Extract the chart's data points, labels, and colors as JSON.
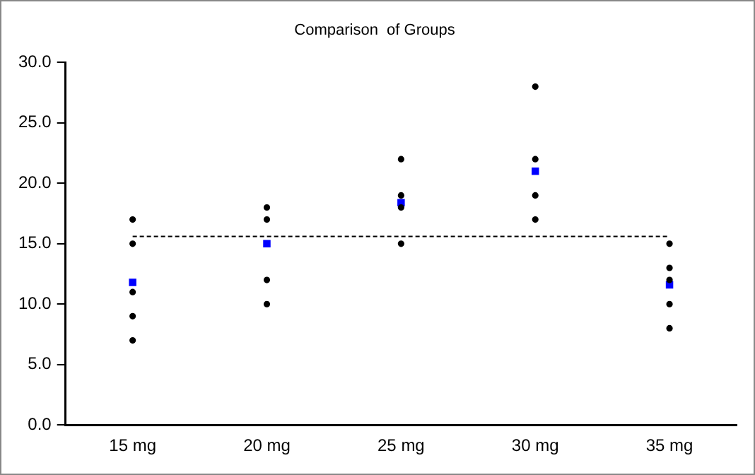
{
  "chart_data": {
    "type": "scatter",
    "title": "Comparison  of Groups",
    "categories": [
      "15 mg",
      "20 mg",
      "25 mg",
      "30 mg",
      "35 mg"
    ],
    "series": [
      {
        "type": "scatter",
        "color": "#000000",
        "marker": "circle",
        "x": [
          "15 mg",
          "15 mg",
          "15 mg",
          "15 mg",
          "15 mg",
          "20 mg",
          "20 mg",
          "20 mg",
          "20 mg",
          "25 mg",
          "25 mg",
          "25 mg",
          "25 mg",
          "30 mg",
          "30 mg",
          "30 mg",
          "30 mg",
          "35 mg",
          "35 mg",
          "35 mg",
          "35 mg",
          "35 mg"
        ],
        "values": [
          17,
          15,
          11,
          9,
          7,
          18,
          17,
          12,
          10,
          22,
          19,
          18,
          15,
          28,
          22,
          19,
          17,
          15,
          13,
          12,
          10,
          8
        ]
      },
      {
        "type": "scatter",
        "color": "#0000ff",
        "marker": "square",
        "x": [
          "15 mg",
          "20 mg",
          "25 mg",
          "30 mg",
          "35 mg"
        ],
        "values": [
          11.8,
          15,
          18.4,
          21,
          11.6
        ]
      }
    ],
    "ylim": [
      0,
      30
    ],
    "yticks": [
      {
        "value": 0,
        "label": "0.0"
      },
      {
        "value": 5,
        "label": "5.0"
      },
      {
        "value": 10,
        "label": "10.0"
      },
      {
        "value": 15,
        "label": "15.0"
      },
      {
        "value": 20,
        "label": "20.0"
      },
      {
        "value": 25,
        "label": "25.0"
      },
      {
        "value": 30,
        "label": "30.0"
      }
    ],
    "ref_lines": [
      {
        "axis": "y",
        "value": 15.6,
        "color": "#000000",
        "line_style": "dashed"
      }
    ],
    "grid": false,
    "legend": false
  }
}
